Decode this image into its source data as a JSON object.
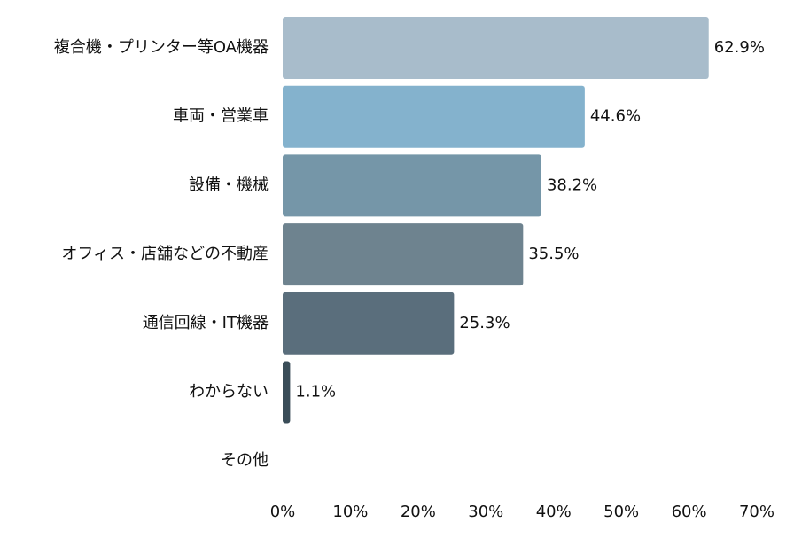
{
  "chart_data": {
    "type": "bar",
    "orientation": "horizontal",
    "categories": [
      "複合機・プリンター等OA機器",
      "車両・営業車",
      "設備・機械",
      "オフィス・店舗などの不動産",
      "通信回線・IT機器",
      "わからない",
      "その他"
    ],
    "values": [
      62.9,
      44.6,
      38.2,
      35.5,
      25.3,
      1.1,
      0
    ],
    "value_labels": [
      "62.9%",
      "44.6%",
      "38.2%",
      "35.5%",
      "25.3%",
      "1.1%",
      ""
    ],
    "colors": [
      "#a8bccb",
      "#84b2cd",
      "#7596a8",
      "#6e838f",
      "#5a6e7c",
      "#3a4d58",
      "#2f3d46"
    ],
    "x_ticks": [
      0,
      10,
      20,
      30,
      40,
      50,
      60,
      70
    ],
    "x_tick_labels": [
      "0%",
      "10%",
      "20%",
      "30%",
      "40%",
      "50%",
      "60%",
      "70%"
    ],
    "xlim": [
      0,
      70
    ],
    "grid": false,
    "title": "",
    "xlabel": "",
    "ylabel": ""
  }
}
